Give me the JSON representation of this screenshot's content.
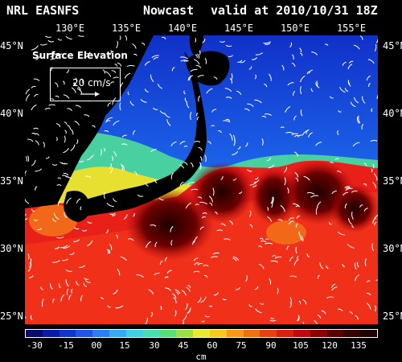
{
  "header": {
    "model": "NRL EASNFS",
    "product": "Nowcast",
    "valid": "valid at 2010/10/31 18Z"
  },
  "axes": {
    "longitudes": [
      "130°E",
      "135°E",
      "140°E",
      "145°E",
      "150°E",
      "155°E"
    ],
    "latitudes": [
      "45°N",
      "40°N",
      "35°N",
      "30°N",
      "25°N"
    ]
  },
  "legend": {
    "title": "Surface Elevation",
    "speed": "20 cm/s"
  },
  "colorbar": {
    "ticks": [
      "-30",
      "-15",
      "00",
      "15",
      "30",
      "45",
      "60",
      "75",
      "90",
      "105",
      "120",
      "135"
    ],
    "unit": "cm",
    "colors": [
      "#0a0a6e",
      "#0c1aa8",
      "#1133d0",
      "#1e55e8",
      "#2a7ef5",
      "#35aaf5",
      "#3fd0e8",
      "#46e0b0",
      "#55e070",
      "#9ae040",
      "#e8e830",
      "#f8c820",
      "#f89818",
      "#f07010",
      "#e84010",
      "#d82010",
      "#c00810",
      "#8c0000",
      "#5a0000",
      "#380000",
      "#200000"
    ]
  },
  "map_colors": {
    "land": "#000000",
    "ocean_low": "#1a50e8",
    "ocean_mid": "#40d8c0",
    "ocean_warm": "#e81818",
    "eddy_high": "#3a0000"
  }
}
